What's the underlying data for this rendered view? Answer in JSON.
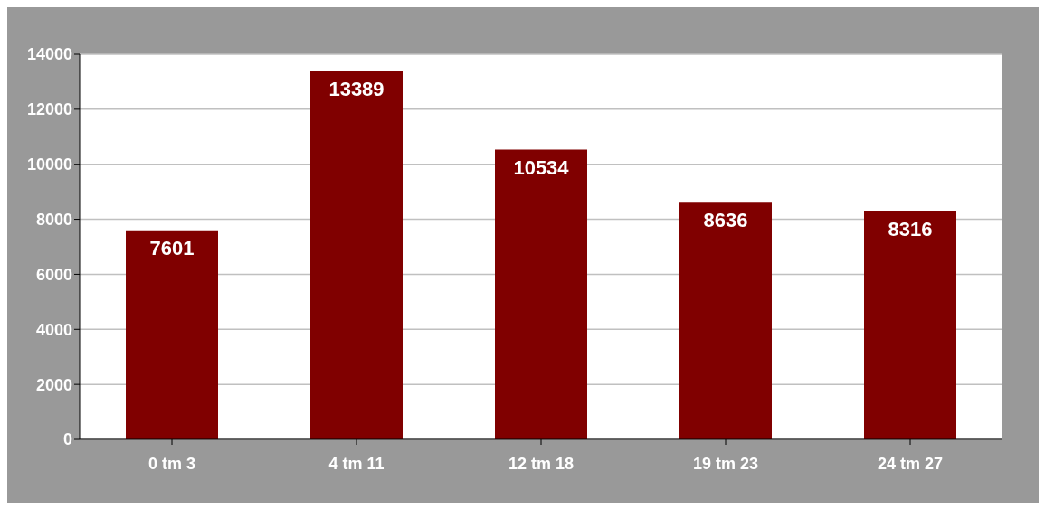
{
  "chart_data": {
    "type": "bar",
    "categories": [
      "0 tm 3",
      "4 tm 11",
      "12 tm 18",
      "19 tm 23",
      "24 tm 27"
    ],
    "values": [
      7601,
      13389,
      10534,
      8636,
      8316
    ],
    "color": "#800000",
    "ylim": [
      0,
      14000
    ],
    "yticks": [
      0,
      2000,
      4000,
      6000,
      8000,
      10000,
      12000,
      14000
    ],
    "grid": "y",
    "data_labels": true
  }
}
